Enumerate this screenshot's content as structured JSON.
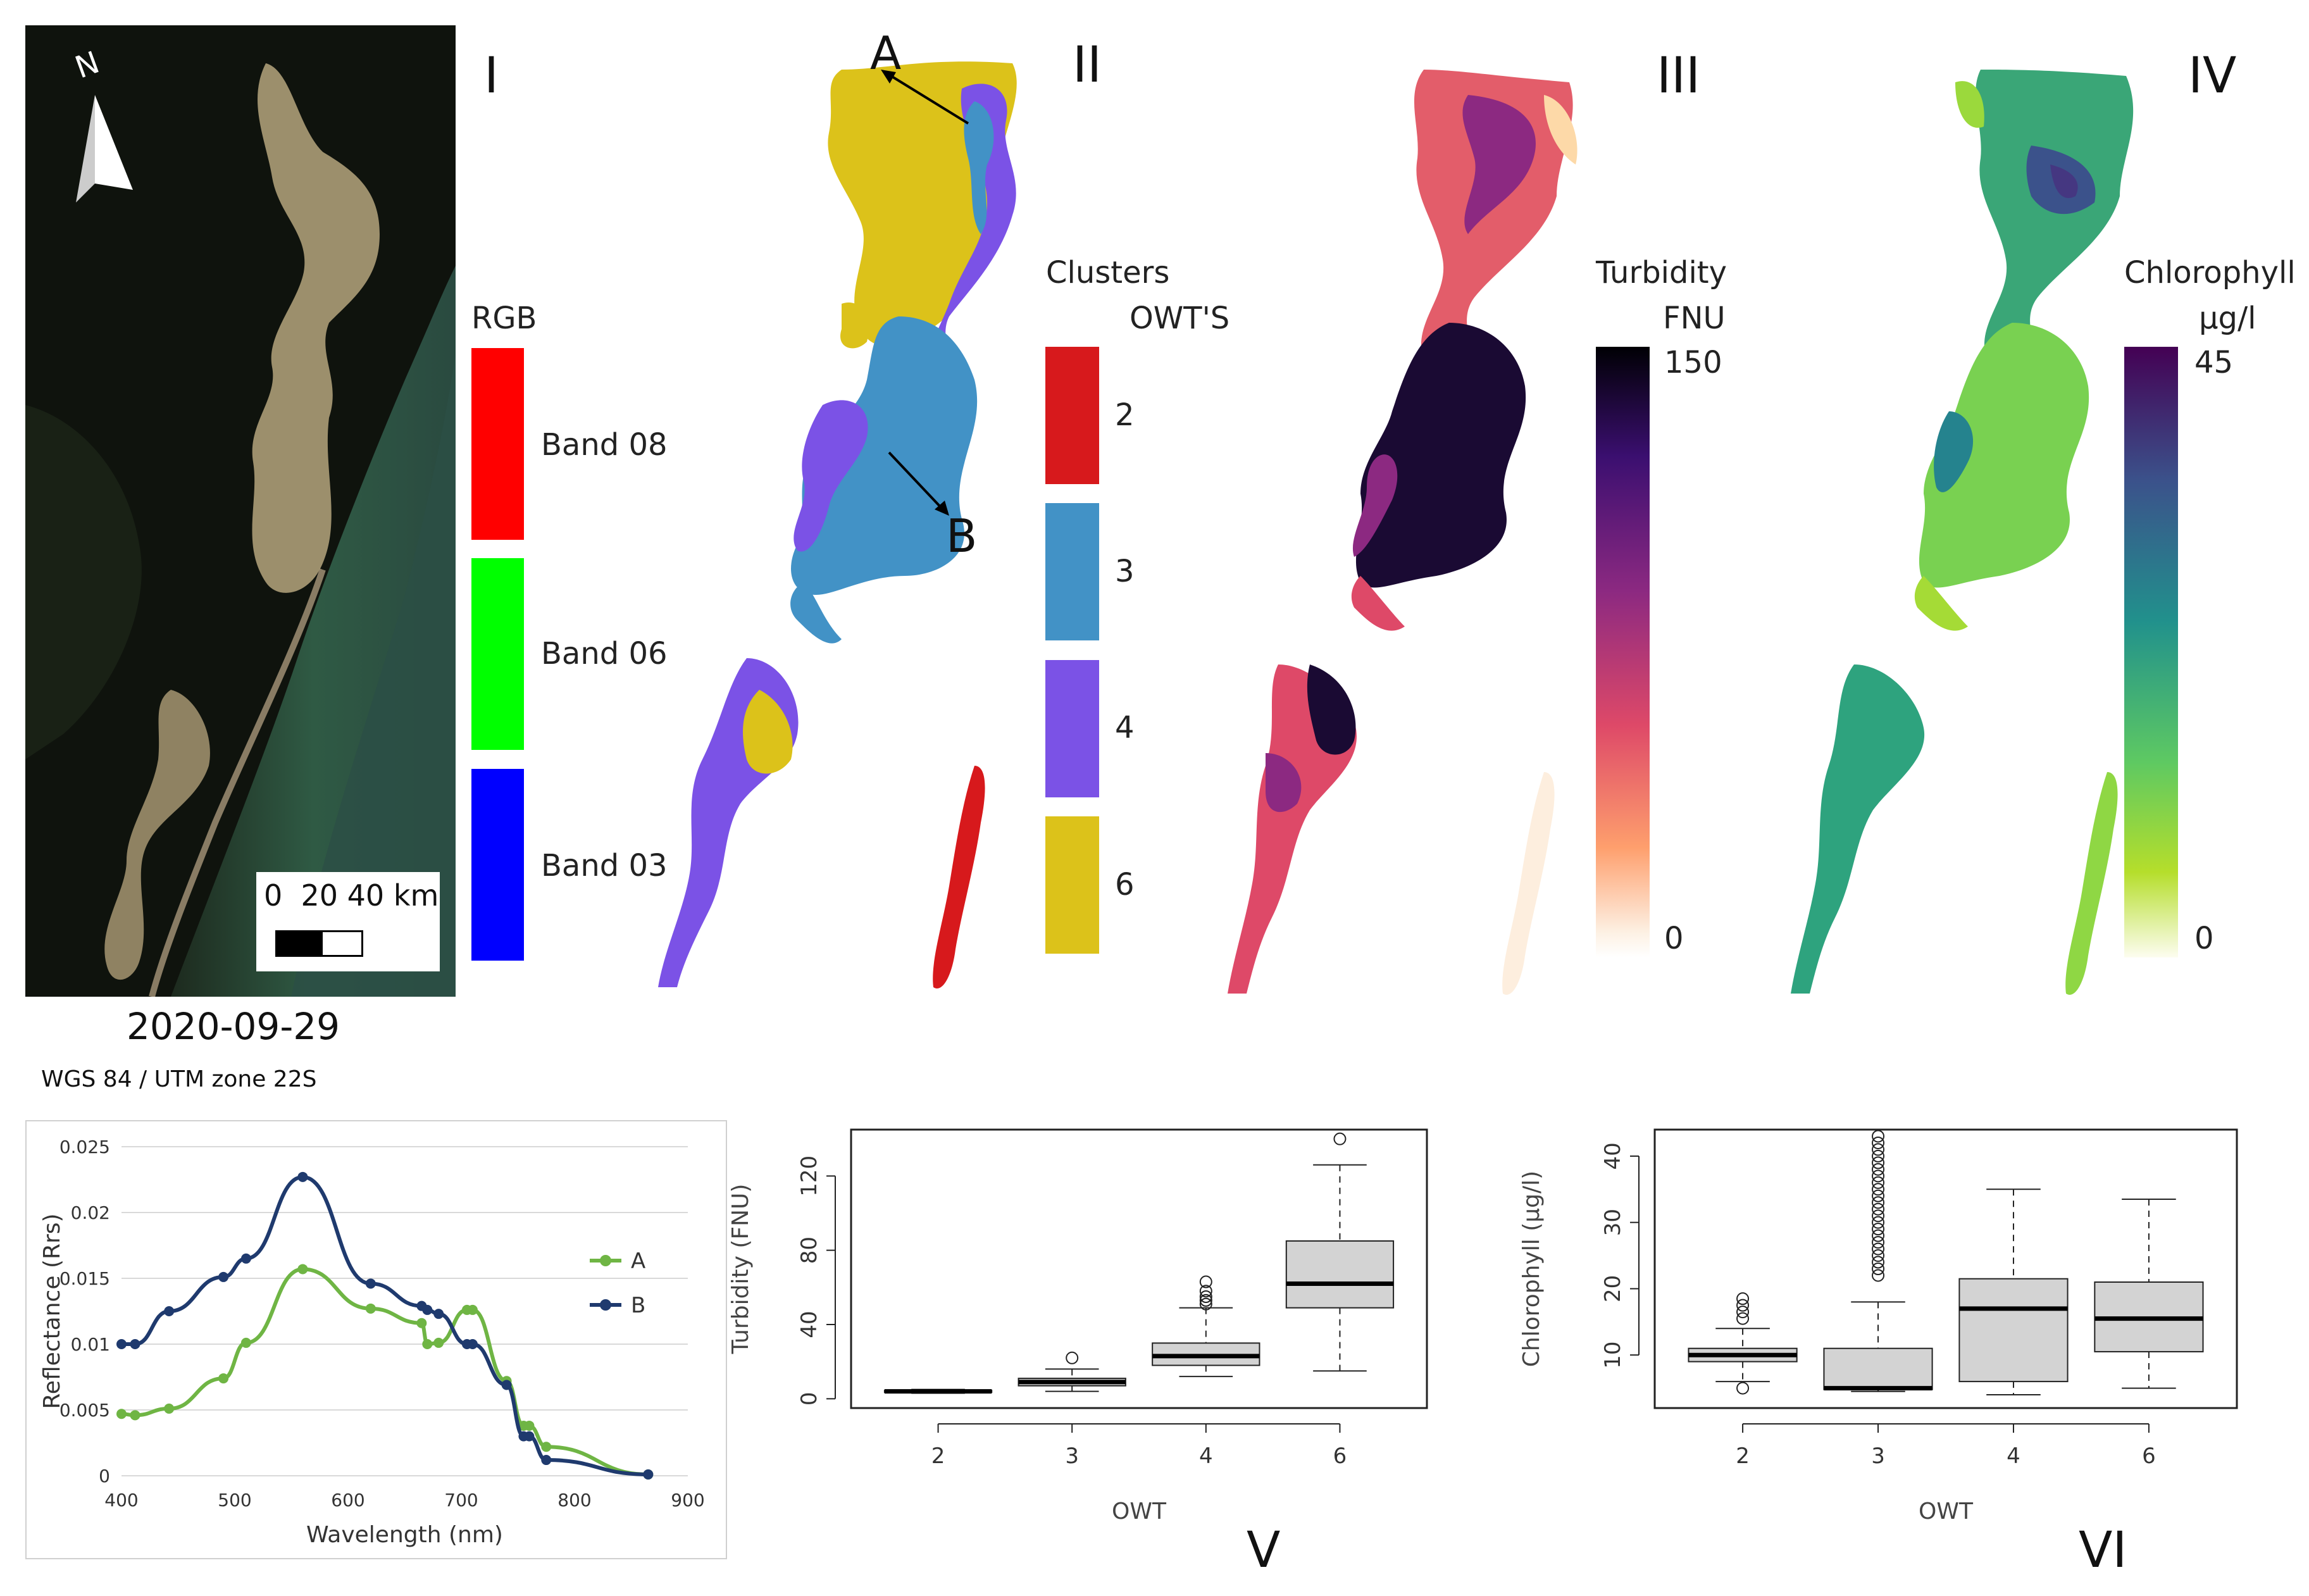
{
  "panels": {
    "i": "I",
    "ii": "II",
    "iii": "III",
    "iv": "IV",
    "v": "V",
    "vi": "VI"
  },
  "satellite": {
    "north": "N",
    "scale_text": "0  20 40 km",
    "date": "2020-09-29",
    "projection": "WGS 84 / UTM zone 22S"
  },
  "rgb_legend": {
    "title": "RGB",
    "bands": [
      {
        "label": "Band 08",
        "color": "#ff0000"
      },
      {
        "label": "Band 06",
        "color": "#00ff00"
      },
      {
        "label": "Band 03",
        "color": "#0000ff"
      }
    ]
  },
  "cluster_map": {
    "label_a": "A",
    "label_b": "B",
    "colors": {
      "owt2": "#d7191c",
      "owt3": "#4292c6",
      "owt4": "#7b52e6",
      "owt6": "#dcc21a"
    }
  },
  "cluster_legend": {
    "title": "Clusters",
    "subtitle": "OWT'S",
    "items": [
      {
        "label": "2",
        "color": "#d7191c"
      },
      {
        "label": "3",
        "color": "#4292c6"
      },
      {
        "label": "4",
        "color": "#7b52e6"
      },
      {
        "label": "6",
        "color": "#dcc21a"
      }
    ]
  },
  "turbidity_legend": {
    "title": "Turbidity",
    "unit": "FNU",
    "max": "150",
    "min": "0",
    "gradient": [
      "#000004",
      "#3b0f70",
      "#8c2981",
      "#de4968",
      "#fe9f6d",
      "#fcfdbf",
      "#ffffff"
    ]
  },
  "chlorophyll_legend": {
    "title": "Chlorophyll",
    "unit": "µg/l",
    "max": "45",
    "min": "0",
    "gradient": [
      "#440154",
      "#3b528b",
      "#21918c",
      "#5ec962",
      "#b5de2b",
      "#fdfdf0"
    ]
  },
  "chart_data": [
    {
      "type": "line",
      "xlabel": "Wavelength (nm)",
      "ylabel": "Reflectance (Rrs)",
      "xlim": [
        400,
        900
      ],
      "ylim": [
        0,
        0.025
      ],
      "xticks": [
        "400",
        "500",
        "600",
        "700",
        "800",
        "900"
      ],
      "yticks": [
        "0",
        "0.005",
        "0.01",
        "0.015",
        "0.02",
        "0.025"
      ],
      "grid": true,
      "legend_position": "right",
      "series": [
        {
          "name": "A",
          "color": "#6fb544",
          "x": [
            400,
            412,
            442,
            490,
            510,
            560,
            620,
            665,
            670,
            680,
            705,
            710,
            740,
            755,
            760,
            775,
            865
          ],
          "y": [
            0.0047,
            0.0046,
            0.0051,
            0.0074,
            0.0101,
            0.0157,
            0.0127,
            0.0116,
            0.01,
            0.0101,
            0.0126,
            0.0126,
            0.0072,
            0.0038,
            0.0038,
            0.0022,
            0.0001
          ]
        },
        {
          "name": "B",
          "color": "#1f3a6e",
          "x": [
            400,
            412,
            442,
            490,
            510,
            560,
            620,
            665,
            670,
            680,
            705,
            710,
            740,
            755,
            760,
            775,
            865
          ],
          "y": [
            0.01,
            0.01,
            0.0125,
            0.0151,
            0.0165,
            0.0227,
            0.0146,
            0.0129,
            0.0126,
            0.0123,
            0.01,
            0.01,
            0.0069,
            0.003,
            0.003,
            0.0012,
            0.0001
          ]
        }
      ]
    },
    {
      "type": "box",
      "xlabel": "OWT",
      "ylabel": "Turbidity (FNU)",
      "categories": [
        "2",
        "3",
        "4",
        "6"
      ],
      "ylim": [
        -5,
        145
      ],
      "yticks": [
        0,
        40,
        80,
        120
      ],
      "boxes": [
        {
          "min": 3,
          "q1": 3.5,
          "median": 4,
          "q3": 4.5,
          "max": 5,
          "outliers": []
        },
        {
          "min": 4,
          "q1": 7,
          "median": 9,
          "q3": 11,
          "max": 16,
          "outliers": [
            22
          ]
        },
        {
          "min": 12,
          "q1": 18,
          "median": 23,
          "q3": 30,
          "max": 49,
          "outliers": [
            51,
            53,
            55,
            58,
            63
          ]
        },
        {
          "min": 15,
          "q1": 49,
          "median": 62,
          "q3": 85,
          "max": 126,
          "outliers": [
            140
          ]
        }
      ]
    },
    {
      "type": "box",
      "xlabel": "OWT",
      "ylabel": "Chlorophyll (µg/l)",
      "categories": [
        "2",
        "3",
        "4",
        "6"
      ],
      "ylim": [
        2,
        44
      ],
      "yticks": [
        10,
        20,
        30,
        40
      ],
      "boxes": [
        {
          "min": 6,
          "q1": 9,
          "median": 10,
          "q3": 11,
          "max": 14,
          "outliers": [
            5,
            15.5,
            16.5,
            17.5,
            18.5
          ]
        },
        {
          "min": 4.5,
          "q1": 4.8,
          "median": 5,
          "q3": 11,
          "max": 18,
          "outliers": [
            22,
            23,
            24,
            25,
            26,
            27,
            28,
            29,
            30,
            31,
            32,
            33,
            34,
            35,
            36,
            37,
            38,
            39,
            40,
            41,
            42,
            43
          ]
        },
        {
          "min": 4,
          "q1": 6,
          "median": 17,
          "q3": 21.5,
          "max": 35,
          "outliers": []
        },
        {
          "min": 5,
          "q1": 10.5,
          "median": 15.5,
          "q3": 21,
          "max": 33.5,
          "outliers": []
        }
      ]
    }
  ]
}
